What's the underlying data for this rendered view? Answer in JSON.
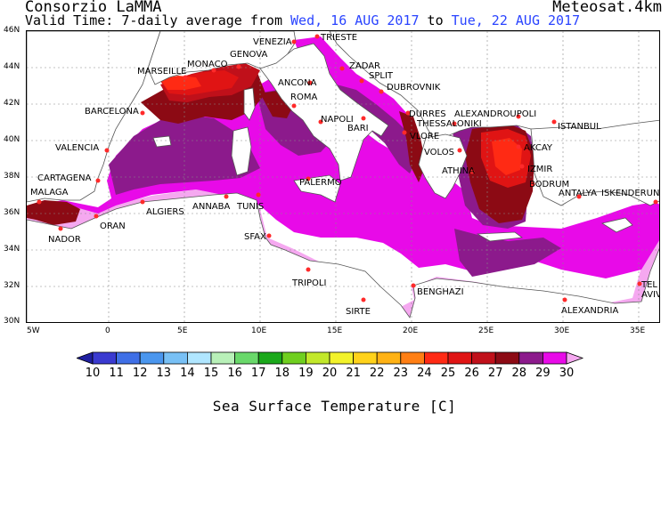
{
  "header": {
    "brand": "Consorzio LaMMA",
    "product": "Meteosat.4km",
    "valid_prefix": "Valid Time: 7-daily average from",
    "start_date": "Wed, 16 AUG 2017",
    "to_word": "to",
    "end_date": "Tue, 22 AUG 2017"
  },
  "map": {
    "lat_labels": [
      "46N",
      "44N",
      "42N",
      "40N",
      "38N",
      "36N",
      "34N",
      "32N",
      "30N"
    ],
    "lon_labels": [
      "5W",
      "0",
      "5E",
      "10E",
      "15E",
      "20E",
      "25E",
      "30E",
      "35E"
    ],
    "cities": [
      "VENEZIA",
      "TRIESTE",
      "MONACO",
      "GENOVA",
      "MARSEILLE",
      "ZADAR",
      "SPLIT",
      "DUBROVNIK",
      "ANCONA",
      "ROMA",
      "BARCELONA",
      "NAPOLI",
      "BARI",
      "DURRES",
      "ALEXANDROUPOLI",
      "ISTANBUL",
      "THESSALONIKI",
      "VLORE",
      "VALENCIA",
      "VOLOS",
      "AKCAY",
      "IZMIR",
      "ATHINA",
      "CARTAGENA",
      "PALERMO",
      "BODRUM",
      "MALAGA",
      "ALGIERS",
      "ANNABA",
      "TUNIS",
      "ANTALYA",
      "ISKENDERUN",
      "ORAN",
      "NADOR",
      "SFAX",
      "TRIPOLI",
      "BENGHAZI",
      "SIRTE",
      "ALEXANDRIA",
      "TEL",
      "AVIV"
    ]
  },
  "legend": {
    "ticks": [
      "10",
      "11",
      "12",
      "13",
      "14",
      "15",
      "16",
      "17",
      "18",
      "19",
      "20",
      "21",
      "22",
      "23",
      "24",
      "25",
      "26",
      "27",
      "28",
      "29",
      "30"
    ],
    "colors": [
      "#1f1fa0",
      "#3a3ad0",
      "#3f6fe6",
      "#4a96ee",
      "#78c0f5",
      "#b0e6ff",
      "#b8f0b8",
      "#69d86a",
      "#1aa81a",
      "#6fcf1f",
      "#c2e82a",
      "#f2f22a",
      "#ffd21a",
      "#ffb214",
      "#ff7f14",
      "#ff2a14",
      "#e01414",
      "#c0101a",
      "#8c0a14",
      "#8c1a8c",
      "#e80ae8",
      "#f5a8f0"
    ],
    "label": "Sea Surface Temperature [C]"
  },
  "map_colors": {
    "land": "#ffffff",
    "sst_25": "#ff2a14",
    "sst_26": "#e01414",
    "sst_27": "#c0101a",
    "sst_28": "#8c0a14",
    "sst_29": "#8c1a8c",
    "sst_30": "#e80ae8",
    "sst_over30": "#f5a8f0"
  }
}
